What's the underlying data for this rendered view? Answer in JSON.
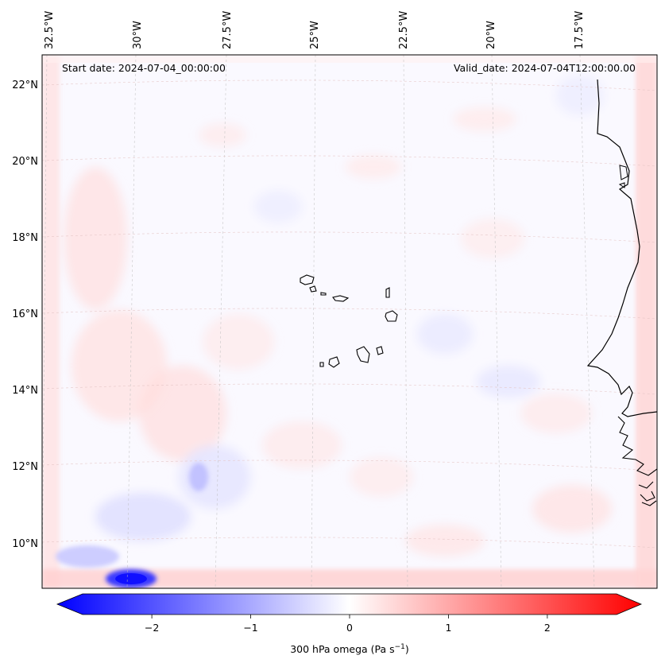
{
  "map": {
    "header": {
      "start_date": "Start date: 2024-07-04_00:00:00",
      "valid_date": "Valid_date: 2024-07-04T12:00:00.00"
    },
    "lon_labels": [
      "32.5°W",
      "30°W",
      "27.5°W",
      "25°W",
      "22.5°W",
      "20°W",
      "17.5°W"
    ],
    "lat_labels": [
      "22°N",
      "20°N",
      "18°N",
      "16°N",
      "14°N",
      "12°N",
      "10°N"
    ],
    "colorbar": {
      "label": "300 hPa omega (Pa s",
      "label_sup": "−1",
      "label_end": ")",
      "ticks": [
        "−2",
        "−1",
        "0",
        "1",
        "2"
      ],
      "min": -2.7,
      "max": 2.7,
      "negative_color": "#0000ff",
      "neutral_color": "#ffffff",
      "positive_color": "#ff0000"
    }
  }
}
